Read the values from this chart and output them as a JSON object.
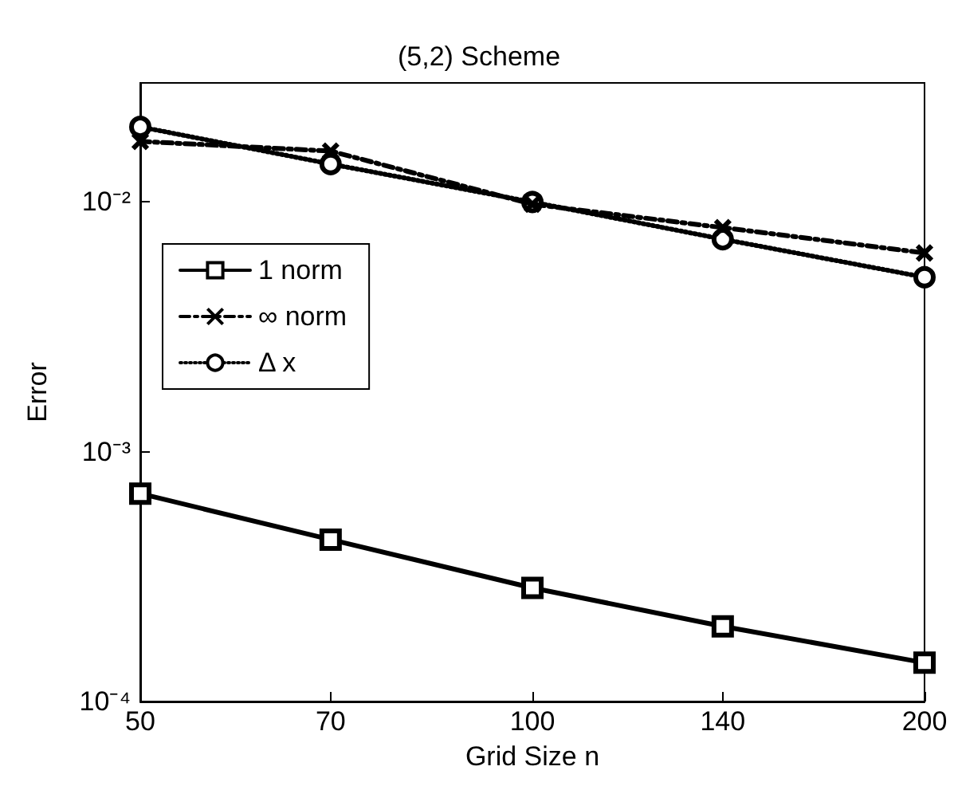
{
  "chart_data": {
    "type": "line",
    "title": "(5,2) Scheme",
    "xlabel": "Grid Size n",
    "ylabel": "Error",
    "log": "xy",
    "grid": false,
    "legend": "top left",
    "x": [
      50,
      70,
      100,
      140,
      200
    ],
    "xlim": [
      50,
      200
    ],
    "xticks": [
      50,
      70,
      100,
      140,
      200
    ],
    "ylim": [
      0.0001,
      0.03
    ],
    "yticks": [
      {
        "value": 0.0001,
        "label": "10⁻⁴"
      },
      {
        "value": 0.001,
        "label": "10⁻³"
      },
      {
        "value": 0.01,
        "label": "10⁻²"
      }
    ],
    "series": [
      {
        "name": "1 norm",
        "color": "#000000",
        "marker": "square",
        "line_style": "solid",
        "values": [
          0.00068,
          0.000445,
          0.000285,
          0.0002,
          0.000143
        ]
      },
      {
        "name": "∞ norm",
        "color": "#000000",
        "marker": "cross",
        "line_style": "dashed",
        "values": [
          0.0175,
          0.016,
          0.0098,
          0.0079,
          0.00625
        ]
      },
      {
        "name": "Δ x",
        "color": "#000000",
        "marker": "circle",
        "line_style": "dotted",
        "values": [
          0.02,
          0.0142,
          0.01,
          0.0071,
          0.005
        ]
      }
    ]
  }
}
